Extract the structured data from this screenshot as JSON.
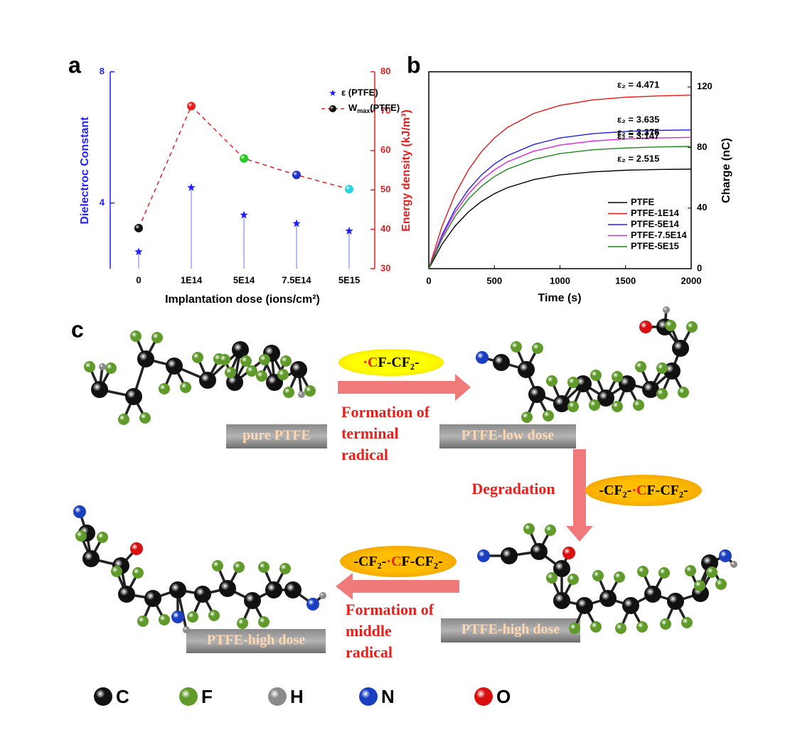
{
  "panel_labels": [
    "a",
    "b",
    "c"
  ],
  "chart_data": [
    {
      "type": "combo",
      "categories": [
        "0",
        "1E14",
        "5E14",
        "7.5E14",
        "5E15"
      ],
      "xlabel": "Implantation dose (ions/cm²)",
      "ylabel": "Dielectroc Constant",
      "y2label": "Energy density (kJ/m³)",
      "ylim": [
        2,
        8
      ],
      "yticks": [
        4,
        8
      ],
      "y2lim": [
        30,
        80
      ],
      "y2ticks": [
        30,
        40,
        50,
        60,
        70,
        80
      ],
      "legend": "upper right",
      "series": [
        {
          "name": "ε (PTFE)",
          "color": "#1f1fff",
          "values": [
            2.515,
            4.471,
            3.635,
            3.375,
            3.147
          ]
        },
        {
          "name": "W",
          "name_sub": "max",
          "name_tail": "(PTFE)",
          "color": "#e02020",
          "axis": "y2",
          "marker_colors": [
            "#111111",
            "#e82020",
            "#22cc22",
            "#2233cc",
            "#22d4e0"
          ],
          "values": [
            40.3,
            71.3,
            58,
            53.8,
            50.2
          ]
        }
      ]
    },
    {
      "type": "line",
      "x": [
        0,
        100,
        200,
        300,
        400,
        500,
        600,
        800,
        1000,
        1250,
        1500,
        1750,
        2000
      ],
      "xlim": [
        0,
        2000
      ],
      "xticks": [
        0,
        500,
        1000,
        1500,
        2000
      ],
      "ylim": [
        0,
        130
      ],
      "yticks": [
        0,
        40,
        80,
        120
      ],
      "xlabel": "Time (s)",
      "ylabel": "Charge (nC)",
      "legend": "lower right",
      "series": [
        {
          "name": "PTFE",
          "color": "#000000",
          "values": [
            0,
            16.0,
            28.1,
            37.3,
            44.3,
            49.5,
            53.5,
            58.8,
            61.9,
            63.9,
            65.0,
            65.5,
            65.7
          ]
        },
        {
          "name": "PTFE-1E14",
          "color": "#e81818",
          "values": [
            0,
            27.9,
            49.0,
            65.0,
            77.1,
            86.3,
            93.3,
            102.5,
            107.8,
            111.4,
            113.2,
            114.1,
            114.6
          ]
        },
        {
          "name": "PTFE-5E14",
          "color": "#2020e8",
          "values": [
            0,
            22.3,
            39.2,
            52.0,
            61.7,
            69.1,
            74.6,
            82.0,
            86.3,
            89.1,
            90.6,
            91.3,
            91.6
          ]
        },
        {
          "name": "PTFE-7.5E14",
          "color": "#e020e0",
          "values": [
            0,
            21.1,
            37.1,
            49.2,
            58.4,
            65.3,
            70.6,
            77.6,
            81.6,
            84.3,
            85.7,
            86.3,
            86.7
          ]
        },
        {
          "name": "PTFE-5E15",
          "color": "#1a8a1a",
          "values": [
            0,
            19.6,
            34.5,
            45.8,
            54.3,
            60.8,
            65.7,
            72.2,
            76.0,
            78.5,
            79.7,
            80.4,
            80.7
          ]
        }
      ],
      "annotations": [
        "ε₂ = 4.471",
        "ε₂ = 3.635",
        "ε₂ = 3.375",
        "ε₂ = 3.147",
        "ε₂ = 2.515"
      ]
    }
  ],
  "scheme": {
    "radicals": [
      {
        "dot": "·",
        "c": "C",
        "rest": "F-CF₂-"
      },
      {
        "pre": "-CF₂-",
        "dot": "·",
        "c": "C",
        "rest": "F-CF₂-"
      },
      {
        "pre": "-CF₂-",
        "dot": "·",
        "c": "C",
        "rest": "F-CF₂-"
      }
    ],
    "states": [
      "pure PTFE",
      "PTFE-low dose",
      "PTFE-high dose",
      "PTFE-high dose"
    ],
    "steps": [
      [
        "Formation of",
        "terminal",
        "radical"
      ],
      [
        "Degradation"
      ],
      [
        "Formation of",
        "middle",
        "radical"
      ]
    ],
    "atoms": [
      "C",
      "F",
      "H",
      "N",
      "O"
    ]
  }
}
